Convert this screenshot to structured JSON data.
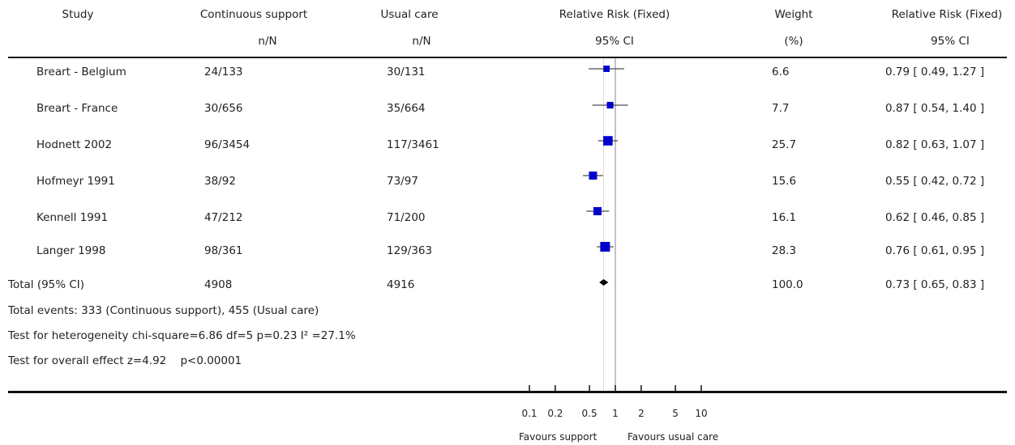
{
  "header": {
    "study": "Study",
    "exp_group": "Continuous support",
    "exp_sub": "n/N",
    "ctl_group": "Usual care",
    "ctl_sub": "n/N",
    "rr_title": "Relative Risk (Fixed)",
    "rr_sub": "95% CI",
    "weight_title": "Weight",
    "weight_sub": "(%)",
    "rr_col_title": "Relative Risk (Fixed)",
    "rr_col_sub": "95% CI"
  },
  "studies": [
    {
      "name": "Breart - Belgium",
      "exp": "24/133",
      "ctl": "30/131",
      "weight": "6.6",
      "ci_text": "0.79 [ 0.49, 1.27 ]"
    },
    {
      "name": "Breart - France",
      "exp": "30/656",
      "ctl": "35/664",
      "weight": "7.7",
      "ci_text": "0.87 [ 0.54, 1.40 ]"
    },
    {
      "name": "Hodnett 2002",
      "exp": "96/3454",
      "ctl": "117/3461",
      "weight": "25.7",
      "ci_text": "0.82 [ 0.63, 1.07 ]"
    },
    {
      "name": "Hofmeyr 1991",
      "exp": "38/92",
      "ctl": "73/97",
      "weight": "15.6",
      "ci_text": "0.55 [ 0.42, 0.72 ]"
    },
    {
      "name": "Kennell 1991",
      "exp": "47/212",
      "ctl": "71/200",
      "weight": "16.1",
      "ci_text": "0.62 [ 0.46, 0.85 ]"
    },
    {
      "name": "Langer 1998",
      "exp": "98/361",
      "ctl": "129/363",
      "weight": "28.3",
      "ci_text": "0.76 [ 0.61, 0.95 ]"
    }
  ],
  "total": {
    "name": "Total (95% CI)",
    "exp": "4908",
    "ctl": "4916",
    "weight": "100.0",
    "ci_text": "0.73 [ 0.65, 0.83 ]"
  },
  "footnotes": {
    "events": "Total events: 333 (Continuous support), 455 (Usual care)",
    "heterogeneity": "Test for heterogeneity chi-square=6.86 df=5 p=0.23 I² =27.1%",
    "overall": "Test for overall effect z=4.92    p<0.00001"
  },
  "axis": {
    "favours_left": "Favours support",
    "favours_right": "Favours usual care"
  },
  "chart_data": {
    "type": "forest",
    "scale": "log",
    "xlim": [
      0.1,
      10
    ],
    "ticks": [
      0.1,
      0.2,
      0.5,
      1,
      2,
      5,
      10
    ],
    "tick_labels": [
      "0.1",
      "0.2",
      "0.5",
      "1",
      "2",
      "5",
      "10"
    ],
    "marker_color": "#0000cc",
    "points": [
      {
        "study": "Breart - Belgium",
        "rr": 0.79,
        "lo": 0.49,
        "hi": 1.27,
        "weight": 6.6
      },
      {
        "study": "Breart - France",
        "rr": 0.87,
        "lo": 0.54,
        "hi": 1.4,
        "weight": 7.7
      },
      {
        "study": "Hodnett 2002",
        "rr": 0.82,
        "lo": 0.63,
        "hi": 1.07,
        "weight": 25.7
      },
      {
        "study": "Hofmeyr 1991",
        "rr": 0.55,
        "lo": 0.42,
        "hi": 0.72,
        "weight": 15.6
      },
      {
        "study": "Kennell 1991",
        "rr": 0.62,
        "lo": 0.46,
        "hi": 0.85,
        "weight": 16.1
      },
      {
        "study": "Langer 1998",
        "rr": 0.76,
        "lo": 0.61,
        "hi": 0.95,
        "weight": 28.3
      }
    ],
    "pooled": {
      "rr": 0.73,
      "lo": 0.65,
      "hi": 0.83
    }
  }
}
